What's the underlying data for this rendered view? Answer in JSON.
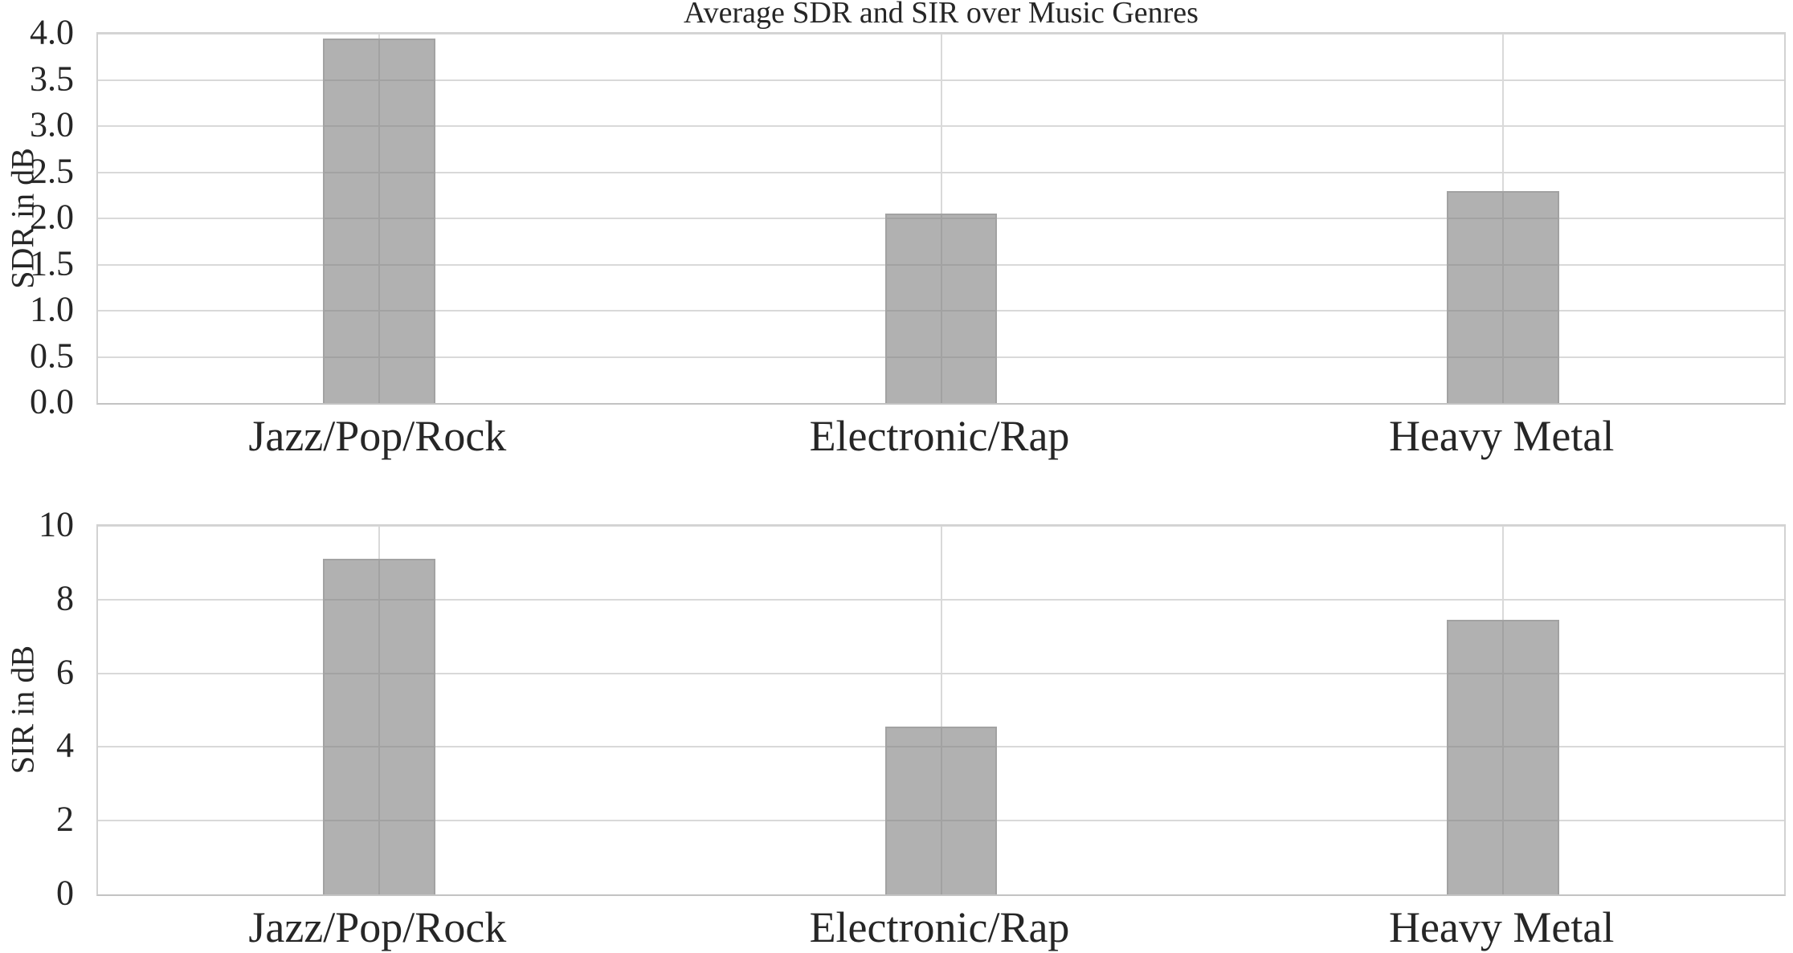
{
  "chart_data": [
    {
      "type": "bar",
      "title": "Average SDR and SIR over Music Genres",
      "categories": [
        "Jazz/Pop/Rock",
        "Electronic/Rap",
        "Heavy Metal"
      ],
      "values": [
        3.95,
        2.05,
        2.3
      ],
      "xlabel": "",
      "ylabel": "SDR in dB",
      "ylim": [
        0,
        4
      ],
      "yticks": [
        0,
        0.5,
        1,
        1.5,
        2,
        2.5,
        3,
        3.5,
        4
      ],
      "ytick_labels": [
        "0.0",
        "0.5",
        "1.0",
        "1.5",
        "2.0",
        "2.5",
        "3.0",
        "3.5",
        "4.0"
      ],
      "grid": true,
      "legend": "none",
      "bar_width_fraction": 0.2
    },
    {
      "type": "bar",
      "title": "",
      "categories": [
        "Jazz/Pop/Rock",
        "Electronic/Rap",
        "Heavy Metal"
      ],
      "values": [
        9.1,
        4.55,
        7.45
      ],
      "xlabel": "",
      "ylabel": "SIR in dB",
      "ylim": [
        0,
        10
      ],
      "yticks": [
        0,
        2,
        4,
        6,
        8,
        10
      ],
      "ytick_labels": [
        "0",
        "2",
        "4",
        "6",
        "8",
        "10"
      ],
      "grid": true,
      "legend": "none",
      "bar_width_fraction": 0.2
    }
  ],
  "colors": {
    "bar_fill": "#b3b3b3",
    "bar_edge": "#a2a2a2",
    "gridline": "#d9d9d9",
    "text": "#262626",
    "background": "#ffffff"
  }
}
